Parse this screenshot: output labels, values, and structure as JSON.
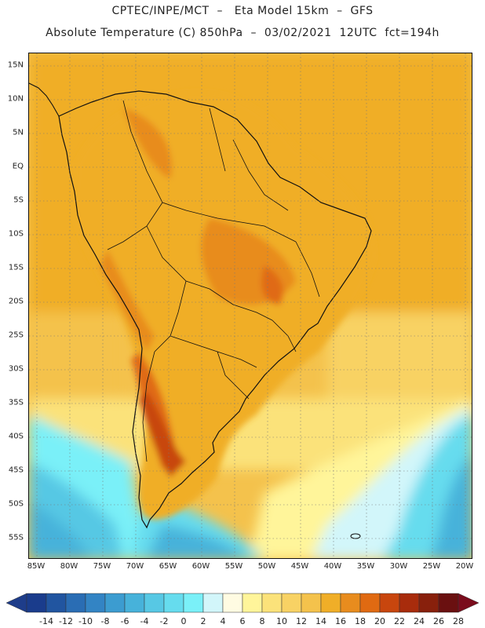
{
  "header": {
    "line1": "CPTEC/INPE/MCT  –   Eta Model 15km  –  GFS",
    "line2": "Absolute Temperature (C) 850hPa  –  03/02/2021  12UTC  fct=194h"
  },
  "map": {
    "lat_labels": [
      "15N",
      "10N",
      "5N",
      "EQ",
      "5S",
      "10S",
      "15S",
      "20S",
      "25S",
      "30S",
      "35S",
      "40S",
      "45S",
      "50S",
      "55S"
    ],
    "lon_labels": [
      "85W",
      "80W",
      "75W",
      "70W",
      "65W",
      "60W",
      "55W",
      "50W",
      "45W",
      "40W",
      "35W",
      "30W",
      "25W",
      "20W"
    ],
    "grid": "dotted"
  },
  "legend": {
    "labels": [
      "-14",
      "-12",
      "-10",
      "-8",
      "-6",
      "-4",
      "-2",
      "0",
      "2",
      "4",
      "6",
      "8",
      "10",
      "12",
      "14",
      "16",
      "18",
      "20",
      "22",
      "24",
      "26",
      "28"
    ],
    "colors": [
      "#1a3c8c",
      "#2155a0",
      "#2a6db4",
      "#3384c4",
      "#3c9cd0",
      "#47b2da",
      "#57c8e4",
      "#66dcee",
      "#7af0f8",
      "#d2f6fa",
      "#fffbe2",
      "#fff59a",
      "#fbe27a",
      "#f8d264",
      "#f4c24c",
      "#f0ae28",
      "#e88c1e",
      "#e06a12",
      "#c8460e",
      "#a82c0c",
      "#88200c",
      "#6a1010"
    ],
    "under_color": "#1e3d8a",
    "over_color": "#7a0c1c"
  }
}
